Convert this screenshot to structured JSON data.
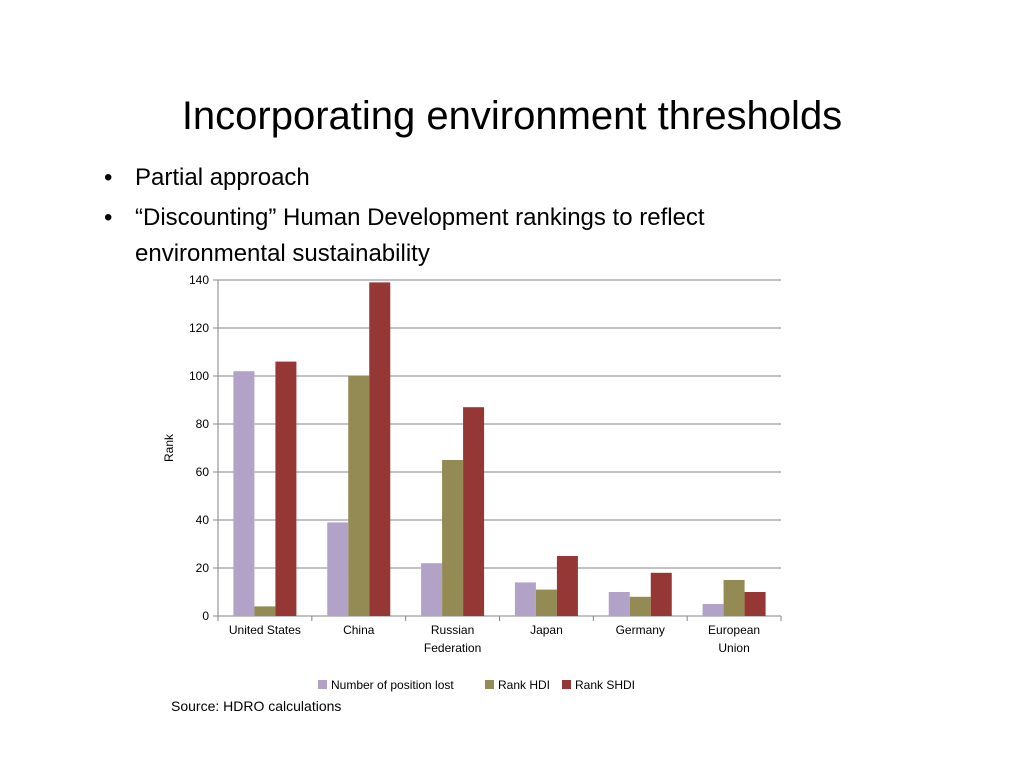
{
  "slide": {
    "title": "Incorporating environment thresholds",
    "bullets": [
      "Partial approach",
      "“Discounting” Human Development rankings to reflect environmental sustainability"
    ],
    "source": "Source: HDRO calculations"
  },
  "chart_data": {
    "type": "bar",
    "categories": [
      [
        "United States"
      ],
      [
        "China"
      ],
      [
        "Russian",
        "Federation"
      ],
      [
        "Japan"
      ],
      [
        "Germany"
      ],
      [
        "European",
        "Union"
      ]
    ],
    "series": [
      {
        "name": "Number of position lost",
        "color": "#b3a2c7",
        "values": [
          102,
          39,
          22,
          14,
          10,
          5
        ]
      },
      {
        "name": "Rank HDI",
        "color": "#948a54",
        "values": [
          4,
          100,
          65,
          11,
          8,
          15
        ]
      },
      {
        "name": "Rank SHDI",
        "color": "#953735",
        "values": [
          106,
          139,
          87,
          25,
          18,
          10
        ]
      }
    ],
    "ylabel": "Rank",
    "xlabel": "",
    "ylim": [
      0,
      140
    ],
    "yticks": [
      0,
      20,
      40,
      60,
      80,
      100,
      120,
      140
    ],
    "grid": true,
    "legend": "bottom"
  }
}
